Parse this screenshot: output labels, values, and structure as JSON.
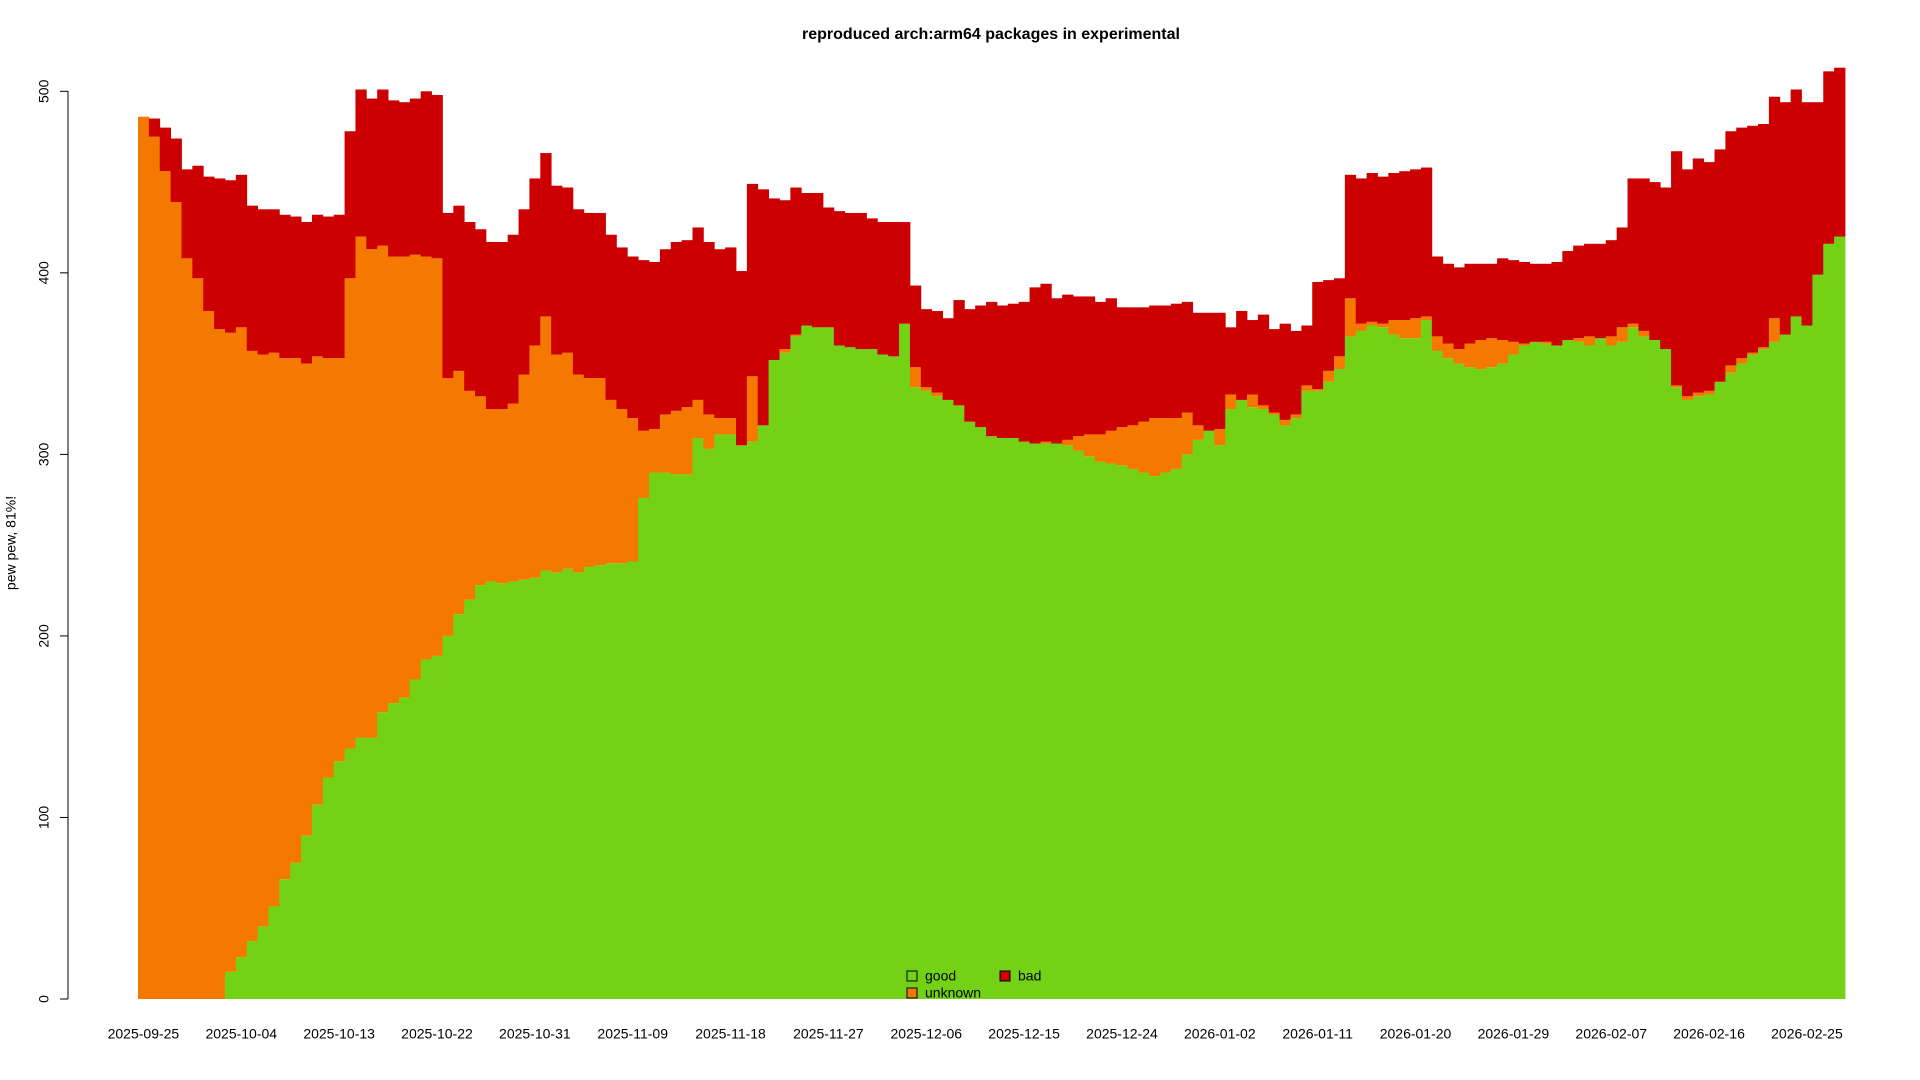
{
  "chart_data": {
    "type": "stacked-bar",
    "title": "reproduced arch:arm64 packages in experimental",
    "ylabel": "pew pew, 81%!",
    "ylim": [
      0,
      520
    ],
    "yticks": [
      0,
      100,
      200,
      300,
      400,
      500
    ],
    "legend": "bottom",
    "categories": [
      "2025-09-25",
      null,
      null,
      null,
      null,
      null,
      null,
      null,
      null,
      "2025-10-04",
      null,
      null,
      null,
      null,
      null,
      null,
      null,
      null,
      "2025-10-13",
      null,
      null,
      null,
      null,
      null,
      null,
      null,
      null,
      "2025-10-22",
      null,
      null,
      null,
      null,
      null,
      null,
      null,
      null,
      "2025-10-31",
      null,
      null,
      null,
      null,
      null,
      null,
      null,
      null,
      "2025-11-09",
      null,
      null,
      null,
      null,
      null,
      null,
      null,
      null,
      "2025-11-18",
      null,
      null,
      null,
      null,
      null,
      null,
      null,
      null,
      "2025-11-27",
      null,
      null,
      null,
      null,
      null,
      null,
      null,
      null,
      "2025-12-06",
      null,
      null,
      null,
      null,
      null,
      null,
      null,
      null,
      "2025-12-15",
      null,
      null,
      null,
      null,
      null,
      null,
      null,
      null,
      "2025-12-24",
      null,
      null,
      null,
      null,
      null,
      null,
      null,
      null,
      "2026-01-02",
      null,
      null,
      null,
      null,
      null,
      null,
      null,
      null,
      "2026-01-11",
      null,
      null,
      null,
      null,
      null,
      null,
      null,
      null,
      "2026-01-20",
      null,
      null,
      null,
      null,
      null,
      null,
      null,
      null,
      "2026-01-29",
      null,
      null,
      null,
      null,
      null,
      null,
      null,
      null,
      "2026-02-07",
      null,
      null,
      null,
      null,
      null,
      null,
      null,
      null,
      "2026-02-16",
      null,
      null,
      null,
      null,
      null,
      null,
      null,
      null,
      "2026-02-25",
      null,
      null,
      null
    ],
    "series": [
      {
        "name": "good",
        "color": "#73d216",
        "values": [
          0,
          0,
          0,
          0,
          0,
          0,
          0,
          0,
          15,
          23,
          32,
          40,
          51,
          66,
          75,
          90,
          107,
          122,
          131,
          138,
          144,
          144,
          158,
          163,
          166,
          176,
          187,
          189,
          200,
          212,
          220,
          228,
          230,
          229,
          230,
          231,
          232,
          236,
          235,
          237,
          235,
          238,
          239,
          240,
          240,
          241,
          276,
          290,
          290,
          289,
          289,
          309,
          303,
          311,
          311,
          305,
          307,
          316,
          352,
          356,
          365,
          371,
          370,
          370,
          360,
          359,
          358,
          358,
          355,
          354,
          372,
          337,
          335,
          332,
          330,
          327,
          318,
          315,
          310,
          309,
          309,
          307,
          306,
          306,
          306,
          305,
          302,
          299,
          296,
          295,
          294,
          292,
          290,
          288,
          290,
          292,
          300,
          308,
          313,
          305,
          325,
          330,
          326,
          325,
          322,
          316,
          320,
          335,
          335,
          340,
          347,
          365,
          368,
          371,
          370,
          366,
          364,
          364,
          374,
          357,
          353,
          350,
          348,
          347,
          348,
          350,
          355,
          360,
          362,
          361,
          360,
          363,
          362,
          360,
          364,
          360,
          362,
          370,
          365,
          363,
          358,
          337,
          330,
          332,
          333,
          340,
          345,
          350,
          355,
          358,
          362,
          366,
          376,
          371,
          399,
          416,
          420
        ]
      },
      {
        "name": "unknown",
        "color": "#f57900",
        "values": [
          486,
          475,
          456,
          439,
          408,
          397,
          379,
          369,
          352,
          347,
          325,
          315,
          305,
          287,
          278,
          260,
          247,
          231,
          222,
          259,
          276,
          269,
          257,
          246,
          243,
          234,
          222,
          219,
          142,
          134,
          115,
          104,
          95,
          96,
          98,
          113,
          128,
          140,
          120,
          119,
          109,
          104,
          103,
          90,
          85,
          79,
          37,
          24,
          32,
          35,
          37,
          21,
          19,
          9,
          9,
          0,
          36,
          0,
          0,
          2,
          1,
          0,
          0,
          0,
          0,
          0,
          0,
          0,
          0,
          0,
          0,
          11,
          2,
          2,
          0,
          0,
          0,
          0,
          0,
          0,
          0,
          0,
          0,
          1,
          0,
          3,
          8,
          12,
          15,
          18,
          21,
          24,
          28,
          32,
          30,
          28,
          23,
          8,
          0,
          9,
          8,
          0,
          7,
          2,
          1,
          3,
          2,
          3,
          1,
          6,
          7,
          21,
          4,
          2,
          2,
          8,
          10,
          11,
          2,
          8,
          8,
          8,
          13,
          16,
          16,
          13,
          7,
          1,
          0,
          1,
          0,
          0,
          2,
          5,
          0,
          5,
          8,
          2,
          3,
          0,
          0,
          1,
          2,
          2,
          2,
          0,
          4,
          3,
          1,
          1,
          13,
          0,
          0,
          0,
          0,
          0,
          0
        ]
      },
      {
        "name": "bad",
        "color": "#cc0000",
        "values": [
          0,
          10,
          24,
          35,
          49,
          62,
          74,
          83,
          84,
          84,
          80,
          80,
          79,
          79,
          78,
          78,
          78,
          78,
          79,
          81,
          81,
          83,
          86,
          86,
          85,
          86,
          91,
          90,
          91,
          91,
          93,
          92,
          92,
          92,
          93,
          91,
          92,
          90,
          93,
          91,
          91,
          91,
          91,
          91,
          89,
          89,
          94,
          92,
          91,
          93,
          92,
          95,
          95,
          93,
          94,
          96,
          106,
          130,
          89,
          82,
          81,
          73,
          74,
          66,
          74,
          74,
          75,
          72,
          73,
          74,
          56,
          45,
          43,
          45,
          45,
          58,
          62,
          67,
          74,
          73,
          74,
          77,
          86,
          87,
          80,
          80,
          77,
          76,
          73,
          73,
          66,
          65,
          63,
          62,
          62,
          63,
          61,
          62,
          65,
          64,
          37,
          49,
          41,
          50,
          46,
          53,
          46,
          33,
          59,
          50,
          43,
          68,
          80,
          82,
          81,
          81,
          82,
          82,
          82,
          44,
          44,
          45,
          44,
          42,
          41,
          45,
          45,
          45,
          43,
          43,
          46,
          49,
          51,
          51,
          52,
          53,
          55,
          80,
          84,
          87,
          89,
          129,
          125,
          129,
          126,
          128,
          129,
          127,
          125,
          123,
          122,
          128,
          125,
          123,
          95,
          95,
          93
        ]
      }
    ]
  }
}
